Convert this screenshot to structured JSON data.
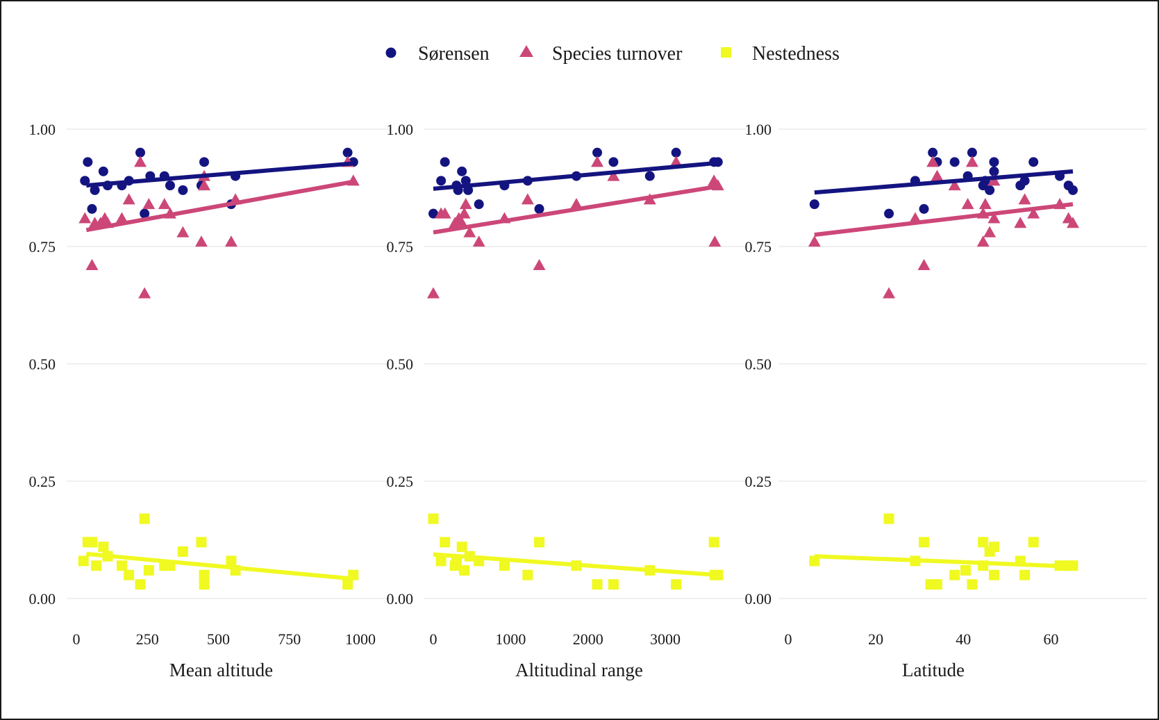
{
  "legend": {
    "items": [
      {
        "label": "Sørensen",
        "color": "#141480",
        "marker": "circle"
      },
      {
        "label": "Species turnover",
        "color": "#cc4778",
        "marker": "triangle"
      },
      {
        "label": "Nestedness",
        "color": "#f0f921",
        "marker": "square"
      }
    ]
  },
  "chart_data": [
    {
      "type": "scatter",
      "xlabel": "Mean altitude",
      "xlim": [
        0,
        1000
      ],
      "xticks": [
        0,
        250,
        500,
        750,
        1000
      ],
      "xtick_labels": [
        "0",
        "250",
        "500",
        "750",
        "1000"
      ],
      "ylim": [
        0,
        1
      ],
      "yticks": [
        0,
        0.25,
        0.5,
        0.75,
        1
      ],
      "ytick_labels": [
        "0.00",
        "0.25",
        "0.50",
        "0.75",
        "1.00"
      ],
      "grid": "horizontal",
      "series": [
        {
          "name": "Sørensen",
          "points": [
            [
              30,
              0.89
            ],
            [
              40,
              0.93
            ],
            [
              55,
              0.83
            ],
            [
              65,
              0.87
            ],
            [
              95,
              0.91
            ],
            [
              110,
              0.88
            ],
            [
              160,
              0.88
            ],
            [
              185,
              0.89
            ],
            [
              225,
              0.95
            ],
            [
              240,
              0.82
            ],
            [
              260,
              0.9
            ],
            [
              310,
              0.9
            ],
            [
              330,
              0.88
            ],
            [
              375,
              0.87
            ],
            [
              440,
              0.88
            ],
            [
              450,
              0.93
            ],
            [
              545,
              0.84
            ],
            [
              560,
              0.9
            ],
            [
              955,
              0.95
            ],
            [
              975,
              0.93
            ]
          ],
          "fit": [
            [
              35,
              0.88
            ],
            [
              975,
              0.927
            ]
          ]
        },
        {
          "name": "Species turnover",
          "points": [
            [
              30,
              0.81
            ],
            [
              55,
              0.71
            ],
            [
              65,
              0.8
            ],
            [
              85,
              0.8
            ],
            [
              100,
              0.81
            ],
            [
              110,
              0.8
            ],
            [
              160,
              0.81
            ],
            [
              185,
              0.85
            ],
            [
              225,
              0.93
            ],
            [
              240,
              0.65
            ],
            [
              255,
              0.84
            ],
            [
              310,
              0.84
            ],
            [
              330,
              0.82
            ],
            [
              375,
              0.78
            ],
            [
              440,
              0.76
            ],
            [
              450,
              0.88
            ],
            [
              450,
              0.9
            ],
            [
              545,
              0.76
            ],
            [
              560,
              0.85
            ],
            [
              955,
              0.93
            ],
            [
              975,
              0.89
            ]
          ],
          "fit": [
            [
              35,
              0.785
            ],
            [
              975,
              0.888
            ]
          ]
        },
        {
          "name": "Nestedness",
          "points": [
            [
              25,
              0.08
            ],
            [
              40,
              0.12
            ],
            [
              55,
              0.12
            ],
            [
              70,
              0.07
            ],
            [
              95,
              0.11
            ],
            [
              110,
              0.09
            ],
            [
              160,
              0.07
            ],
            [
              185,
              0.05
            ],
            [
              225,
              0.03
            ],
            [
              240,
              0.17
            ],
            [
              255,
              0.06
            ],
            [
              310,
              0.07
            ],
            [
              330,
              0.07
            ],
            [
              375,
              0.1
            ],
            [
              440,
              0.12
            ],
            [
              450,
              0.03
            ],
            [
              450,
              0.05
            ],
            [
              545,
              0.08
            ],
            [
              560,
              0.06
            ],
            [
              955,
              0.03
            ],
            [
              975,
              0.05
            ]
          ],
          "fit": [
            [
              35,
              0.095
            ],
            [
              975,
              0.042
            ]
          ]
        }
      ]
    },
    {
      "type": "scatter",
      "xlabel": "Altitudinal range",
      "xlim": [
        0,
        3700
      ],
      "xticks": [
        0,
        1000,
        2000,
        3000
      ],
      "xtick_labels": [
        "0",
        "1000",
        "2000",
        "3000"
      ],
      "ylim": [
        0,
        1
      ],
      "yticks": [
        0,
        0.25,
        0.5,
        0.75,
        1
      ],
      "ytick_labels": [
        "0.00",
        "0.25",
        "0.50",
        "0.75",
        "1.00"
      ],
      "grid": "horizontal",
      "series": [
        {
          "name": "Sørensen",
          "points": [
            [
              0,
              0.82
            ],
            [
              100,
              0.89
            ],
            [
              150,
              0.93
            ],
            [
              300,
              0.88
            ],
            [
              320,
              0.87
            ],
            [
              370,
              0.91
            ],
            [
              420,
              0.89
            ],
            [
              450,
              0.87
            ],
            [
              590,
              0.84
            ],
            [
              920,
              0.88
            ],
            [
              1220,
              0.89
            ],
            [
              1370,
              0.83
            ],
            [
              1850,
              0.9
            ],
            [
              2120,
              0.95
            ],
            [
              2330,
              0.93
            ],
            [
              2800,
              0.9
            ],
            [
              3140,
              0.95
            ],
            [
              3630,
              0.93
            ],
            [
              3640,
              0.88
            ],
            [
              3680,
              0.93
            ]
          ],
          "fit": [
            [
              0,
              0.873
            ],
            [
              3680,
              0.928
            ]
          ]
        },
        {
          "name": "Species turnover",
          "points": [
            [
              0,
              0.65
            ],
            [
              100,
              0.82
            ],
            [
              150,
              0.82
            ],
            [
              280,
              0.8
            ],
            [
              330,
              0.81
            ],
            [
              370,
              0.8
            ],
            [
              400,
              0.82
            ],
            [
              420,
              0.84
            ],
            [
              470,
              0.78
            ],
            [
              590,
              0.76
            ],
            [
              920,
              0.81
            ],
            [
              1220,
              0.85
            ],
            [
              1370,
              0.71
            ],
            [
              1850,
              0.84
            ],
            [
              2120,
              0.93
            ],
            [
              2330,
              0.9
            ],
            [
              2800,
              0.85
            ],
            [
              3140,
              0.93
            ],
            [
              3630,
              0.89
            ],
            [
              3640,
              0.76
            ],
            [
              3680,
              0.88
            ]
          ],
          "fit": [
            [
              0,
              0.78
            ],
            [
              3680,
              0.878
            ]
          ]
        },
        {
          "name": "Nestedness",
          "points": [
            [
              0,
              0.17
            ],
            [
              100,
              0.08
            ],
            [
              150,
              0.12
            ],
            [
              280,
              0.07
            ],
            [
              300,
              0.08
            ],
            [
              370,
              0.11
            ],
            [
              400,
              0.06
            ],
            [
              470,
              0.09
            ],
            [
              590,
              0.08
            ],
            [
              920,
              0.07
            ],
            [
              1220,
              0.05
            ],
            [
              1370,
              0.12
            ],
            [
              1850,
              0.07
            ],
            [
              2120,
              0.03
            ],
            [
              2330,
              0.03
            ],
            [
              2800,
              0.06
            ],
            [
              3140,
              0.03
            ],
            [
              3630,
              0.12
            ],
            [
              3640,
              0.05
            ],
            [
              3680,
              0.05
            ]
          ],
          "fit": [
            [
              0,
              0.094
            ],
            [
              3680,
              0.05
            ]
          ]
        }
      ]
    },
    {
      "type": "scatter",
      "xlabel": "Latitude",
      "xlim": [
        0,
        65
      ],
      "xticks": [
        0,
        20,
        40,
        60
      ],
      "xtick_labels": [
        "0",
        "20",
        "40",
        "60"
      ],
      "ylim": [
        0,
        1
      ],
      "yticks": [
        0,
        0.25,
        0.5,
        0.75,
        1
      ],
      "ytick_labels": [
        "0.00",
        "0.25",
        "0.50",
        "0.75",
        "1.00"
      ],
      "grid": "horizontal",
      "series": [
        {
          "name": "Sørensen",
          "points": [
            [
              6,
              0.84
            ],
            [
              23,
              0.82
            ],
            [
              29,
              0.89
            ],
            [
              31,
              0.83
            ],
            [
              33,
              0.95
            ],
            [
              34,
              0.93
            ],
            [
              38,
              0.93
            ],
            [
              41,
              0.9
            ],
            [
              42,
              0.95
            ],
            [
              44.5,
              0.88
            ],
            [
              45,
              0.89
            ],
            [
              46,
              0.87
            ],
            [
              47,
              0.93
            ],
            [
              47,
              0.91
            ],
            [
              53,
              0.88
            ],
            [
              54,
              0.89
            ],
            [
              56,
              0.93
            ],
            [
              62,
              0.9
            ],
            [
              64,
              0.88
            ],
            [
              65,
              0.87
            ]
          ],
          "fit": [
            [
              6,
              0.865
            ],
            [
              65,
              0.91
            ]
          ]
        },
        {
          "name": "Species turnover",
          "points": [
            [
              6,
              0.76
            ],
            [
              23,
              0.65
            ],
            [
              29,
              0.81
            ],
            [
              31,
              0.71
            ],
            [
              33,
              0.93
            ],
            [
              34,
              0.9
            ],
            [
              38,
              0.88
            ],
            [
              41,
              0.84
            ],
            [
              42,
              0.93
            ],
            [
              44.5,
              0.76
            ],
            [
              44.5,
              0.82
            ],
            [
              45,
              0.84
            ],
            [
              46,
              0.78
            ],
            [
              47,
              0.81
            ],
            [
              47,
              0.89
            ],
            [
              53,
              0.8
            ],
            [
              54,
              0.85
            ],
            [
              56,
              0.82
            ],
            [
              62,
              0.84
            ],
            [
              64,
              0.81
            ],
            [
              65,
              0.8
            ]
          ],
          "fit": [
            [
              6,
              0.775
            ],
            [
              65,
              0.84
            ]
          ]
        },
        {
          "name": "Nestedness",
          "points": [
            [
              6,
              0.08
            ],
            [
              23,
              0.17
            ],
            [
              29,
              0.08
            ],
            [
              31,
              0.12
            ],
            [
              32.5,
              0.03
            ],
            [
              34,
              0.03
            ],
            [
              38,
              0.05
            ],
            [
              40.5,
              0.06
            ],
            [
              42,
              0.03
            ],
            [
              44.5,
              0.12
            ],
            [
              44.5,
              0.07
            ],
            [
              46,
              0.1
            ],
            [
              47,
              0.05
            ],
            [
              47,
              0.11
            ],
            [
              53,
              0.08
            ],
            [
              54,
              0.05
            ],
            [
              56,
              0.12
            ],
            [
              62,
              0.07
            ],
            [
              64,
              0.07
            ],
            [
              65,
              0.07
            ]
          ],
          "fit": [
            [
              6,
              0.09
            ],
            [
              65,
              0.068
            ]
          ]
        }
      ]
    }
  ]
}
